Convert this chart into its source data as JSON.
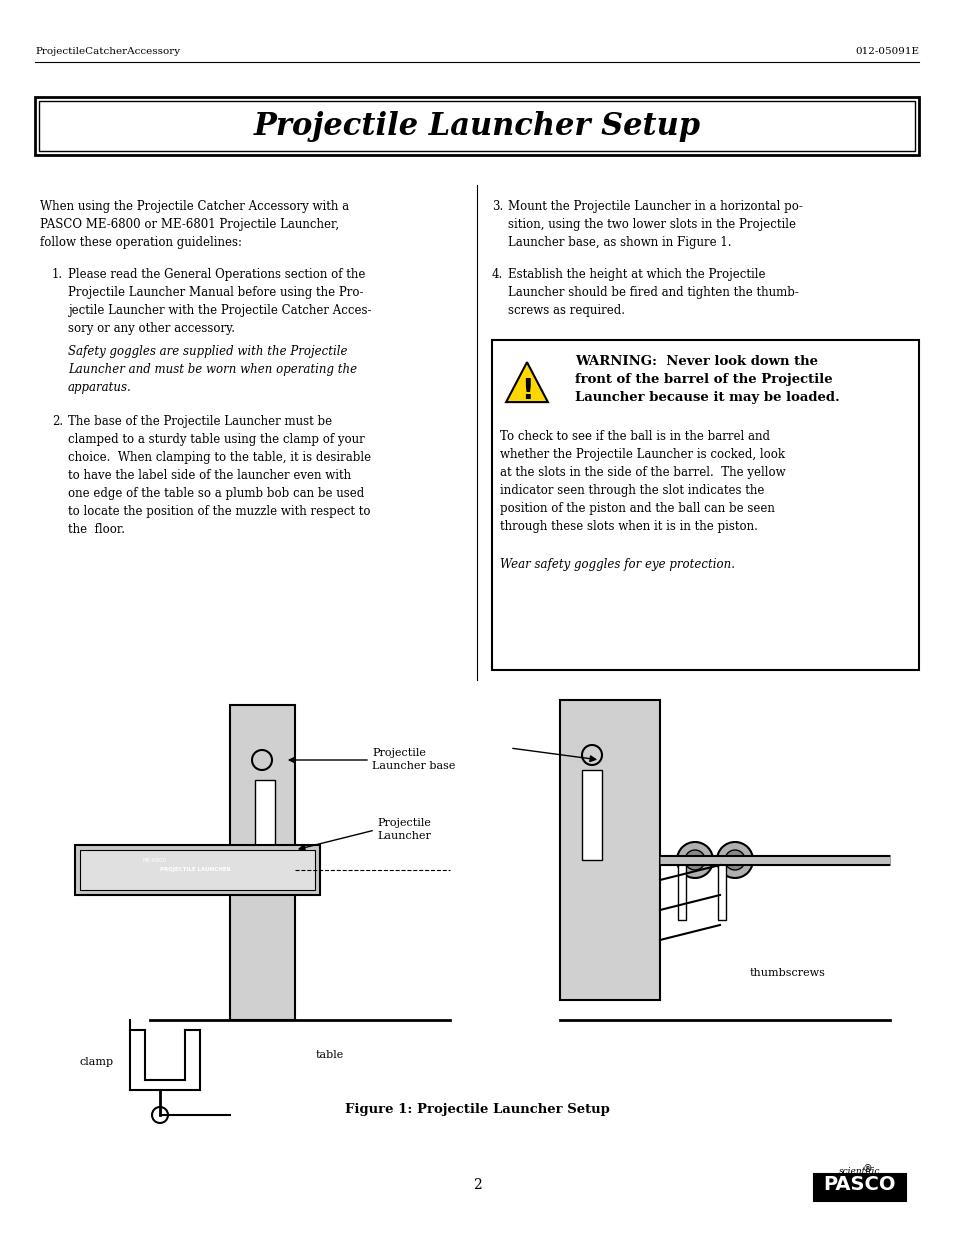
{
  "header_left": "ProjectileCatcherAccessory",
  "header_right": "012-05091E",
  "title": "Projectile Launcher Setup",
  "page_number": "2",
  "col1_text": [
    {
      "text": "When using the Projectile Catcher Accessory with a PASCO ME-6800 or ME-6801 Projectile Launcher, follow these operation guidelines:",
      "style": "normal",
      "indent": 0
    },
    {
      "text": "1.  Please read the General Operations section of the Projectile Launcher Manual before using the Projectile Launcher with the Projectile Catcher Accessory or any other accessory.",
      "style": "normal_italic_mixed",
      "indent": 0
    },
    {
      "text": "Safety goggles are supplied with the Projectile Launcher and must be worn when operating the apparatus.",
      "style": "italic",
      "indent": 1
    },
    {
      "text": "2.  The base of the Projectile Launcher must be clamped to a sturdy table using the clamp of your choice.  When clamping to the table, it is desirable to have the label side of the launcher even with one edge of the table so a plumb bob can be used to locate the position of the muzzle with respect to the  floor.",
      "style": "normal",
      "indent": 0
    }
  ],
  "col2_text": [
    {
      "text": "3.  Mount the Projectile Launcher in a horizontal position, using the two lower slots in the Projectile Launcher base, as shown in Figure 1.",
      "style": "normal",
      "indent": 0
    },
    {
      "text": "4.  Establish the height at which the Projectile Launcher should be fired and tighten the thumbscrews as required.",
      "style": "normal",
      "indent": 0
    }
  ],
  "warning_title": "WARNING: Never look down the front of the barrel of the Projectile Launcher because it may be loaded.",
  "warning_body": "To check to see if the ball is in the barrel and whether the Projectile Launcher is cocked, look at the slots in the side of the barrel.  The yellow indicator seen through the slot indicates the position of the piston and the ball can be seen through these slots when it is in the piston.",
  "warning_italic": "Wear safety goggles for eye protection.",
  "figure_caption": "Figure 1: Projectile Launcher Setup",
  "bg_color": "#ffffff",
  "text_color": "#000000"
}
